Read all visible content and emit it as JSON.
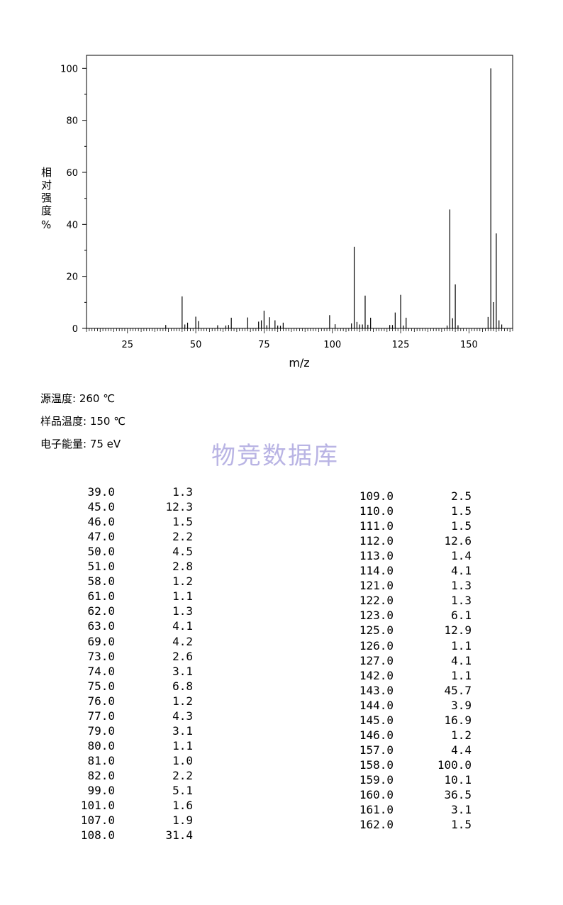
{
  "chart_data": {
    "type": "bar",
    "ylabel": "相对强度 %",
    "xlabel": "m/z",
    "xlim": [
      10,
      166
    ],
    "ylim": [
      0,
      105
    ],
    "x_ticks": [
      25,
      50,
      75,
      100,
      125,
      150
    ],
    "y_ticks": [
      0,
      20,
      40,
      60,
      80,
      100
    ],
    "grid": false,
    "peaks": [
      {
        "mz": 39.0,
        "intensity": 1.3
      },
      {
        "mz": 45.0,
        "intensity": 12.3
      },
      {
        "mz": 46.0,
        "intensity": 1.5
      },
      {
        "mz": 47.0,
        "intensity": 2.2
      },
      {
        "mz": 50.0,
        "intensity": 4.5
      },
      {
        "mz": 51.0,
        "intensity": 2.8
      },
      {
        "mz": 58.0,
        "intensity": 1.2
      },
      {
        "mz": 61.0,
        "intensity": 1.1
      },
      {
        "mz": 62.0,
        "intensity": 1.3
      },
      {
        "mz": 63.0,
        "intensity": 4.1
      },
      {
        "mz": 69.0,
        "intensity": 4.2
      },
      {
        "mz": 73.0,
        "intensity": 2.6
      },
      {
        "mz": 74.0,
        "intensity": 3.1
      },
      {
        "mz": 75.0,
        "intensity": 6.8
      },
      {
        "mz": 76.0,
        "intensity": 1.2
      },
      {
        "mz": 77.0,
        "intensity": 4.3
      },
      {
        "mz": 79.0,
        "intensity": 3.1
      },
      {
        "mz": 80.0,
        "intensity": 1.1
      },
      {
        "mz": 81.0,
        "intensity": 1.0
      },
      {
        "mz": 82.0,
        "intensity": 2.2
      },
      {
        "mz": 99.0,
        "intensity": 5.1
      },
      {
        "mz": 101.0,
        "intensity": 1.6
      },
      {
        "mz": 107.0,
        "intensity": 1.9
      },
      {
        "mz": 108.0,
        "intensity": 31.4
      },
      {
        "mz": 109.0,
        "intensity": 2.5
      },
      {
        "mz": 110.0,
        "intensity": 1.5
      },
      {
        "mz": 111.0,
        "intensity": 1.5
      },
      {
        "mz": 112.0,
        "intensity": 12.6
      },
      {
        "mz": 113.0,
        "intensity": 1.4
      },
      {
        "mz": 114.0,
        "intensity": 4.1
      },
      {
        "mz": 121.0,
        "intensity": 1.3
      },
      {
        "mz": 122.0,
        "intensity": 1.3
      },
      {
        "mz": 123.0,
        "intensity": 6.1
      },
      {
        "mz": 125.0,
        "intensity": 12.9
      },
      {
        "mz": 126.0,
        "intensity": 1.1
      },
      {
        "mz": 127.0,
        "intensity": 4.1
      },
      {
        "mz": 142.0,
        "intensity": 1.1
      },
      {
        "mz": 143.0,
        "intensity": 45.7
      },
      {
        "mz": 144.0,
        "intensity": 3.9
      },
      {
        "mz": 145.0,
        "intensity": 16.9
      },
      {
        "mz": 146.0,
        "intensity": 1.2
      },
      {
        "mz": 157.0,
        "intensity": 4.4
      },
      {
        "mz": 158.0,
        "intensity": 100.0
      },
      {
        "mz": 159.0,
        "intensity": 10.1
      },
      {
        "mz": 160.0,
        "intensity": 36.5
      },
      {
        "mz": 161.0,
        "intensity": 3.1
      },
      {
        "mz": 162.0,
        "intensity": 1.5
      }
    ]
  },
  "conditions": {
    "source_temp": "源温度: 260 ℃",
    "sample_temp": "样品温度: 150 ℃",
    "electron_energy": "电子能量: 75 eV"
  },
  "watermark": "物竞数据库",
  "table": {
    "left": [
      [
        "39.0",
        "1.3"
      ],
      [
        "45.0",
        "12.3"
      ],
      [
        "46.0",
        "1.5"
      ],
      [
        "47.0",
        "2.2"
      ],
      [
        "50.0",
        "4.5"
      ],
      [
        "51.0",
        "2.8"
      ],
      [
        "58.0",
        "1.2"
      ],
      [
        "61.0",
        "1.1"
      ],
      [
        "62.0",
        "1.3"
      ],
      [
        "63.0",
        "4.1"
      ],
      [
        "69.0",
        "4.2"
      ],
      [
        "73.0",
        "2.6"
      ],
      [
        "74.0",
        "3.1"
      ],
      [
        "75.0",
        "6.8"
      ],
      [
        "76.0",
        "1.2"
      ],
      [
        "77.0",
        "4.3"
      ],
      [
        "79.0",
        "3.1"
      ],
      [
        "80.0",
        "1.1"
      ],
      [
        "81.0",
        "1.0"
      ],
      [
        "82.0",
        "2.2"
      ],
      [
        "99.0",
        "5.1"
      ],
      [
        "101.0",
        "1.6"
      ],
      [
        "107.0",
        "1.9"
      ],
      [
        "108.0",
        "31.4"
      ]
    ],
    "right": [
      [
        "109.0",
        "2.5"
      ],
      [
        "110.0",
        "1.5"
      ],
      [
        "111.0",
        "1.5"
      ],
      [
        "112.0",
        "12.6"
      ],
      [
        "113.0",
        "1.4"
      ],
      [
        "114.0",
        "4.1"
      ],
      [
        "121.0",
        "1.3"
      ],
      [
        "122.0",
        "1.3"
      ],
      [
        "123.0",
        "6.1"
      ],
      [
        "125.0",
        "12.9"
      ],
      [
        "126.0",
        "1.1"
      ],
      [
        "127.0",
        "4.1"
      ],
      [
        "142.0",
        "1.1"
      ],
      [
        "143.0",
        "45.7"
      ],
      [
        "144.0",
        "3.9"
      ],
      [
        "145.0",
        "16.9"
      ],
      [
        "146.0",
        "1.2"
      ],
      [
        "157.0",
        "4.4"
      ],
      [
        "158.0",
        "100.0"
      ],
      [
        "159.0",
        "10.1"
      ],
      [
        "160.0",
        "36.5"
      ],
      [
        "161.0",
        "3.1"
      ],
      [
        "162.0",
        "1.5"
      ]
    ]
  }
}
